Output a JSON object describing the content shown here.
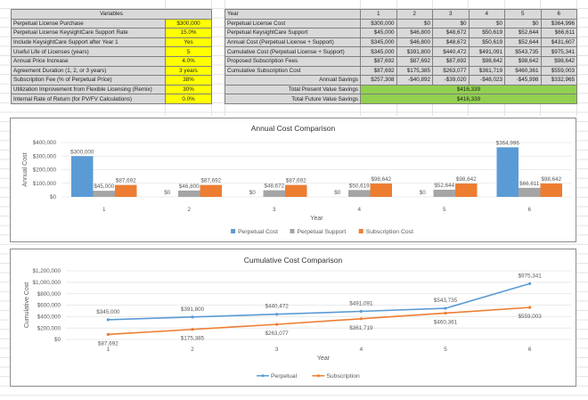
{
  "variables": {
    "header": "Variables",
    "rows": [
      {
        "label": "Perpetual License Purchase",
        "value": "$300,000"
      },
      {
        "label": "Perpetual License KeysightCare Support Rate",
        "value": "15.0%"
      },
      {
        "label": "Include KeysightCare Support after Year 1",
        "value": "Yes"
      },
      {
        "label": "Useful Life of Licenses (years)",
        "value": "5"
      },
      {
        "label": "Annual Price Increase",
        "value": "4.0%"
      },
      {
        "label": "Agreement Duration (1, 2, or 3 years)",
        "value": "3 years"
      },
      {
        "label": "Subscription Fee (% of Perpetual Price)",
        "value": "38%"
      },
      {
        "label": "Utilization Improvement from Flexible Licensing (Remix)",
        "value": "30%"
      },
      {
        "label": "Internal Rate of Return (for PV/FV Calculations)",
        "value": "0.0%"
      }
    ],
    "colors": {
      "label_bg": "#d9d9d9",
      "value_bg": "#ffff00"
    }
  },
  "cost_table": {
    "year_label": "Year",
    "years": [
      "1",
      "2",
      "3",
      "4",
      "5",
      "6"
    ],
    "rows": [
      {
        "label": "Perpetual License Cost",
        "values": [
          "$300,000",
          "$0",
          "$0",
          "$0",
          "$0",
          "$364,996"
        ]
      },
      {
        "label": "Perpetual KeysightCare Support",
        "values": [
          "$45,000",
          "$46,800",
          "$48,672",
          "$50,619",
          "$52,644",
          "$66,611"
        ]
      },
      {
        "label": "Annual Cost (Perpetual License + Support)",
        "values": [
          "$345,000",
          "$46,800",
          "$48,672",
          "$50,619",
          "$52,644",
          "$431,607"
        ]
      },
      {
        "label": "Cumulative Cost  (Perpetual License + Support)",
        "values": [
          "$345,000",
          "$391,800",
          "$440,472",
          "$491,091",
          "$543,735",
          "$975,341"
        ]
      },
      {
        "label": "Proposed Subscription Fees",
        "values": [
          "$87,692",
          "$87,692",
          "$87,692",
          "$98,642",
          "$98,642",
          "$98,642"
        ]
      },
      {
        "label": "Cumulative Subscription Cost",
        "values": [
          "$87,692",
          "$175,385",
          "$263,077",
          "$361,719",
          "$460,361",
          "$559,003"
        ]
      }
    ],
    "annual_savings": {
      "label": "Annual Savings",
      "values": [
        "$257,308",
        "-$40,892",
        "-$39,020",
        "-$48,023",
        "-$45,998",
        "$332,965"
      ]
    },
    "totals": [
      {
        "label": "Total Present Value Savings",
        "value": "$416,339"
      },
      {
        "label": "Total Future Value Savings",
        "value": "$416,339"
      }
    ],
    "colors": {
      "total_bg": "#92d050"
    }
  },
  "chart_data": [
    {
      "type": "bar",
      "title": "Annual Cost Comparison",
      "xlabel": "Year",
      "ylabel": "Annual Cost",
      "categories": [
        "1",
        "2",
        "3",
        "4",
        "5",
        "6"
      ],
      "ylim": [
        0,
        400000
      ],
      "yticks": [
        0,
        100000,
        200000,
        300000,
        400000
      ],
      "ytick_labels": [
        "$0",
        "$100,000",
        "$200,000",
        "$300,000",
        "$400,000"
      ],
      "grid": true,
      "legend": "bottom",
      "series": [
        {
          "name": "Perpetual Cost",
          "color": "#5b9bd5",
          "values": [
            300000,
            0,
            0,
            0,
            0,
            364996
          ],
          "labels": [
            "$300,000",
            "$0",
            "$0",
            "$0",
            "$0",
            "$364,996"
          ]
        },
        {
          "name": "Perpetual Support",
          "color": "#a5a5a5",
          "values": [
            45000,
            46800,
            48672,
            50619,
            52644,
            66611
          ],
          "labels": [
            "$45,000",
            "$46,800",
            "$48,672",
            "$50,619",
            "$52,644",
            "$66,611"
          ]
        },
        {
          "name": "Subscription Cost",
          "color": "#ed7d31",
          "values": [
            87692,
            87692,
            87692,
            98642,
            98642,
            98642
          ],
          "labels": [
            "$87,692",
            "$87,692",
            "$87,692",
            "$98,642",
            "$98,642",
            "$98,642"
          ]
        }
      ]
    },
    {
      "type": "line",
      "title": "Cumulative Cost Comparison",
      "xlabel": "Year",
      "ylabel": "Cumulative Cost",
      "categories": [
        "1",
        "2",
        "3",
        "4",
        "5",
        "6"
      ],
      "ylim": [
        0,
        1200000
      ],
      "yticks": [
        0,
        200000,
        400000,
        600000,
        800000,
        1000000,
        1200000
      ],
      "ytick_labels": [
        "$0",
        "$200,000",
        "$400,000",
        "$600,000",
        "$800,000",
        "$1,000,000",
        "$1,200,000"
      ],
      "grid": true,
      "legend": "bottom",
      "series": [
        {
          "name": "Perpetual",
          "color": "#5b9bd5",
          "values": [
            345000,
            391800,
            440472,
            491091,
            543735,
            975341
          ],
          "labels": [
            "$345,000",
            "$391,800",
            "$440,472",
            "$491,091",
            "$543,735",
            "$975,341"
          ],
          "label_pos": "above"
        },
        {
          "name": "Subscription",
          "color": "#ed7d31",
          "values": [
            87692,
            175385,
            263077,
            361719,
            460361,
            559003
          ],
          "labels": [
            "$87,692",
            "$175,385",
            "$263,077",
            "$361,719",
            "$460,361",
            "$559,003"
          ],
          "label_pos": "below"
        }
      ]
    }
  ]
}
